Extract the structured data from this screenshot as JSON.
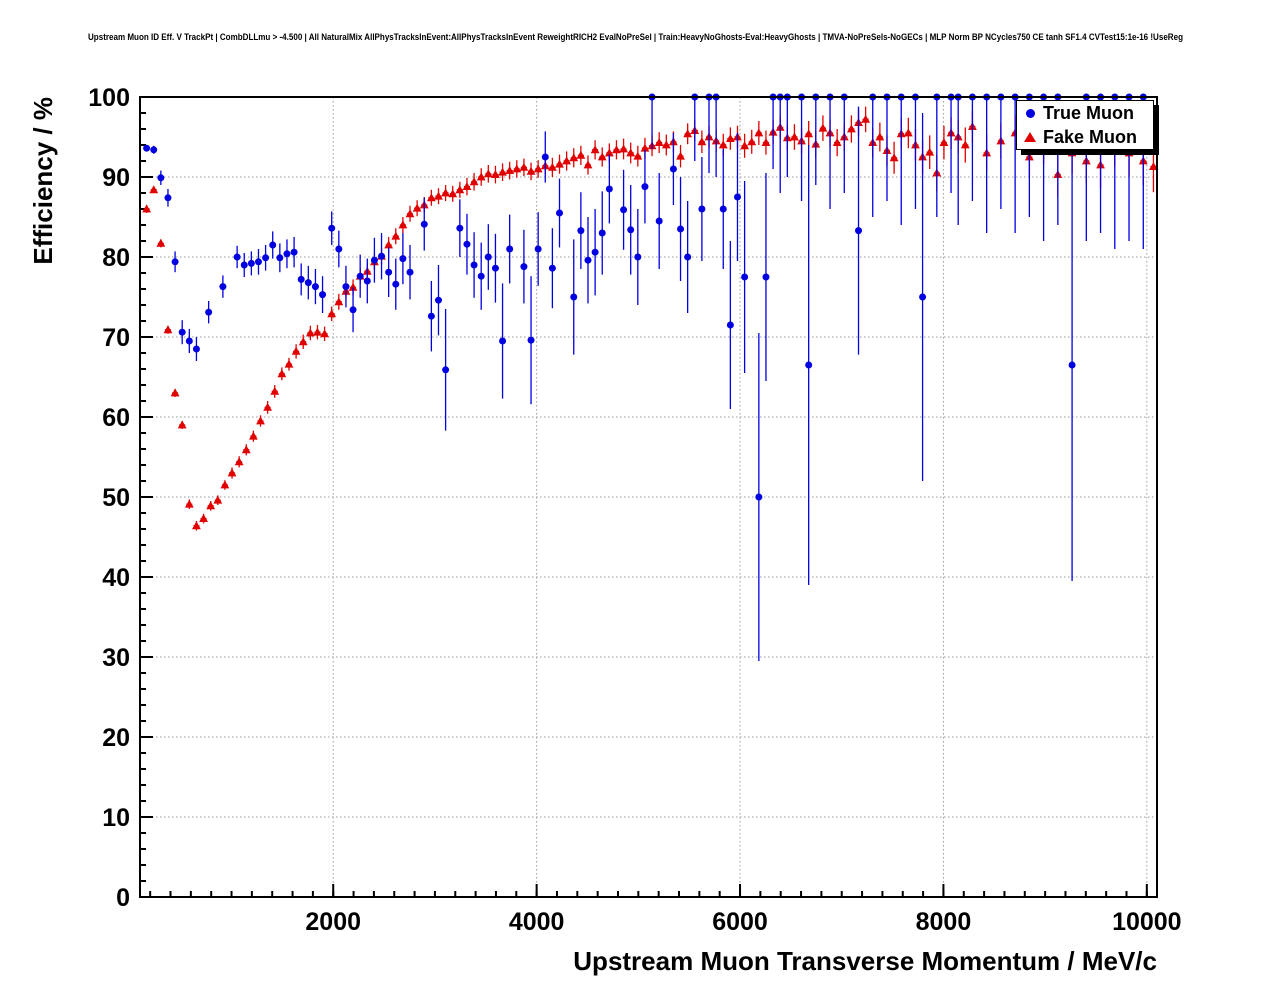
{
  "chart_data": {
    "type": "scatter",
    "title": "Upstream Muon ID Eff. V TrackPt | CombDLLmu > -4.500 | All NaturalMix AllPhysTracksInEvent:AllPhysTracksInEvent ReweightRICH2 EvalNoPreSel | Train:HeavyNoGhosts-Eval:HeavyGhosts | TMVA-NoPreSels-NoGECs | MLP Norm BP NCycles750 CE tanh SF1.4 CVTest15:1e-16 !UseReg",
    "xlabel": "Upstream Muon Transverse Momentum / MeV/c",
    "ylabel": "Efficiency / %",
    "xlim": [
      100,
      10100
    ],
    "ylim": [
      0,
      100
    ],
    "x_ticks": [
      2000,
      4000,
      6000,
      8000,
      10000
    ],
    "x_tick_labels": [
      "2000",
      "4000",
      "6000",
      "8000",
      "10000"
    ],
    "x_minor_step": 200,
    "y_ticks": [
      0,
      10,
      20,
      30,
      40,
      50,
      60,
      70,
      80,
      90,
      100
    ],
    "y_minor_step": 2,
    "grid": true,
    "grid_style": "dotted",
    "legend": {
      "position": "top-right",
      "items": [
        {
          "label": "True Muon",
          "marker": "circle"
        },
        {
          "label": "Fake Muon",
          "marker": "triangle"
        }
      ]
    },
    "series": [
      {
        "name": "True Muon",
        "marker": "circle",
        "color": "#0000e0",
        "x_halfwidth": 30,
        "points": [
          [
            165,
            93.6,
            0.4
          ],
          [
            235,
            93.4,
            0.5
          ],
          [
            305,
            89.9,
            0.9
          ],
          [
            375,
            87.4,
            1.1
          ],
          [
            445,
            79.4,
            1.3
          ],
          [
            515,
            70.6,
            1.5
          ],
          [
            585,
            69.5,
            1.5
          ],
          [
            655,
            68.5,
            1.5
          ],
          [
            775,
            73.1,
            1.4
          ],
          [
            915,
            76.3,
            1.4
          ],
          [
            1055,
            80.0,
            1.4
          ],
          [
            1125,
            79.0,
            1.5
          ],
          [
            1195,
            79.2,
            1.5
          ],
          [
            1265,
            79.4,
            1.6
          ],
          [
            1335,
            79.9,
            1.6
          ],
          [
            1405,
            81.5,
            1.7
          ],
          [
            1475,
            79.9,
            1.8
          ],
          [
            1545,
            80.4,
            1.8
          ],
          [
            1615,
            80.6,
            1.9
          ],
          [
            1685,
            77.2,
            2.0
          ],
          [
            1755,
            76.8,
            2.1
          ],
          [
            1825,
            76.3,
            2.2
          ],
          [
            1895,
            75.3,
            2.3
          ],
          [
            1985,
            83.6,
            2.1
          ],
          [
            2055,
            81.0,
            2.3
          ],
          [
            2125,
            76.3,
            2.6
          ],
          [
            2195,
            73.4,
            2.8
          ],
          [
            2265,
            77.6,
            2.7
          ],
          [
            2335,
            77.0,
            2.8
          ],
          [
            2405,
            79.6,
            2.8
          ],
          [
            2475,
            80.1,
            2.9
          ],
          [
            2545,
            78.1,
            3.1
          ],
          [
            2615,
            76.6,
            3.2
          ],
          [
            2685,
            79.8,
            3.2
          ],
          [
            2755,
            78.1,
            3.4
          ],
          [
            2895,
            84.1,
            3.3
          ],
          [
            2965,
            72.6,
            4.4
          ],
          [
            3035,
            74.6,
            4.4
          ],
          [
            3105,
            65.9,
            7.6
          ],
          [
            3245,
            83.6,
            3.6
          ],
          [
            3315,
            81.6,
            3.8
          ],
          [
            3385,
            79.0,
            4.1
          ],
          [
            3455,
            77.6,
            4.2
          ],
          [
            3525,
            80.0,
            4.1
          ],
          [
            3595,
            78.6,
            4.3
          ],
          [
            3665,
            69.5,
            7.2
          ],
          [
            3735,
            81.0,
            4.3
          ],
          [
            3875,
            78.8,
            4.6
          ],
          [
            3945,
            69.6,
            8.0
          ],
          [
            4015,
            81.0,
            4.6
          ],
          [
            4085,
            92.5,
            3.2
          ],
          [
            4155,
            78.6,
            5.0
          ],
          [
            4225,
            85.5,
            4.3
          ],
          [
            4365,
            75.0,
            7.2
          ],
          [
            4435,
            83.3,
            4.8
          ],
          [
            4505,
            79.6,
            5.4
          ],
          [
            4575,
            80.6,
            5.4
          ],
          [
            4645,
            83.0,
            5.2
          ],
          [
            4715,
            88.5,
            4.3
          ],
          [
            4855,
            85.9,
            5.0
          ],
          [
            4925,
            83.4,
            5.6
          ],
          [
            4995,
            80.0,
            6.0
          ],
          [
            5065,
            88.8,
            4.6
          ],
          [
            5135,
            100,
            6.5
          ],
          [
            5205,
            84.5,
            6.0
          ],
          [
            5345,
            91.0,
            4.5
          ],
          [
            5415,
            83.5,
            6.5
          ],
          [
            5485,
            80.0,
            7.0
          ],
          [
            5555,
            100,
            8.0
          ],
          [
            5625,
            86.0,
            6.5
          ],
          [
            5695,
            100,
            9.5
          ],
          [
            5765,
            100,
            10.0
          ],
          [
            5835,
            86.0,
            7.5
          ],
          [
            5905,
            71.5,
            10.5
          ],
          [
            5975,
            87.5,
            8.0
          ],
          [
            6045,
            77.5,
            12.0
          ],
          [
            6185,
            50.0,
            20.5
          ],
          [
            6255,
            77.5,
            13.0
          ],
          [
            6325,
            100,
            9.0
          ],
          [
            6395,
            100,
            12.0
          ],
          [
            6465,
            100,
            10.0
          ],
          [
            6605,
            100,
            13.0
          ],
          [
            6675,
            66.5,
            27.5
          ],
          [
            6745,
            100,
            11.0
          ],
          [
            6885,
            100,
            14.0
          ],
          [
            7025,
            100,
            12.0
          ],
          [
            7165,
            83.3,
            15.5
          ],
          [
            7305,
            100,
            15.0
          ],
          [
            7445,
            100,
            13.0
          ],
          [
            7585,
            100,
            16.0
          ],
          [
            7725,
            100,
            14.0
          ],
          [
            7795,
            75.0,
            23.0
          ],
          [
            7935,
            100,
            15.0
          ],
          [
            8075,
            100,
            12.0
          ],
          [
            8145,
            100,
            16.0
          ],
          [
            8285,
            100,
            13.0
          ],
          [
            8425,
            100,
            17.0
          ],
          [
            8565,
            100,
            14.0
          ],
          [
            8705,
            100,
            17.0
          ],
          [
            8845,
            100,
            15.0
          ],
          [
            8985,
            100,
            18.0
          ],
          [
            9125,
            100,
            16.0
          ],
          [
            9265,
            66.5,
            27.0
          ],
          [
            9405,
            100,
            18.0
          ],
          [
            9545,
            100,
            17.0
          ],
          [
            9685,
            100,
            19.0
          ],
          [
            9825,
            100,
            18.0
          ],
          [
            9965,
            100,
            19.0
          ]
        ]
      },
      {
        "name": "Fake Muon",
        "marker": "triangle",
        "color": "#e00000",
        "x_halfwidth": 30,
        "points": [
          [
            165,
            86.0,
            0.5
          ],
          [
            235,
            88.4,
            0.4
          ],
          [
            305,
            81.7,
            0.5
          ],
          [
            375,
            70.9,
            0.5
          ],
          [
            445,
            63.0,
            0.5
          ],
          [
            515,
            59.0,
            0.5
          ],
          [
            585,
            49.1,
            0.6
          ],
          [
            655,
            46.4,
            0.6
          ],
          [
            725,
            47.3,
            0.6
          ],
          [
            795,
            48.9,
            0.6
          ],
          [
            865,
            49.6,
            0.6
          ],
          [
            935,
            51.5,
            0.6
          ],
          [
            1005,
            53.0,
            0.7
          ],
          [
            1075,
            54.4,
            0.7
          ],
          [
            1145,
            55.9,
            0.7
          ],
          [
            1215,
            57.6,
            0.7
          ],
          [
            1285,
            59.5,
            0.7
          ],
          [
            1355,
            61.2,
            0.8
          ],
          [
            1425,
            63.2,
            0.8
          ],
          [
            1495,
            65.4,
            0.8
          ],
          [
            1565,
            66.6,
            0.8
          ],
          [
            1635,
            68.2,
            0.9
          ],
          [
            1705,
            69.4,
            0.9
          ],
          [
            1775,
            70.5,
            0.9
          ],
          [
            1845,
            70.6,
            0.9
          ],
          [
            1915,
            70.4,
            0.9
          ],
          [
            1985,
            72.9,
            0.9
          ],
          [
            2055,
            74.4,
            1.0
          ],
          [
            2125,
            75.7,
            1.0
          ],
          [
            2195,
            76.2,
            1.0
          ],
          [
            2265,
            77.6,
            1.0
          ],
          [
            2335,
            78.2,
            1.0
          ],
          [
            2405,
            79.4,
            1.0
          ],
          [
            2475,
            80.1,
            1.0
          ],
          [
            2545,
            81.5,
            1.0
          ],
          [
            2615,
            82.6,
            1.0
          ],
          [
            2685,
            84.0,
            1.0
          ],
          [
            2755,
            85.4,
            1.0
          ],
          [
            2825,
            86.1,
            1.0
          ],
          [
            2895,
            86.5,
            1.0
          ],
          [
            2965,
            87.4,
            1.0
          ],
          [
            3035,
            87.6,
            1.0
          ],
          [
            3105,
            88.0,
            1.0
          ],
          [
            3175,
            87.9,
            1.0
          ],
          [
            3245,
            88.4,
            1.0
          ],
          [
            3315,
            88.8,
            1.1
          ],
          [
            3385,
            89.4,
            1.1
          ],
          [
            3455,
            90.0,
            1.1
          ],
          [
            3525,
            90.4,
            1.1
          ],
          [
            3595,
            90.3,
            1.1
          ],
          [
            3665,
            90.6,
            1.1
          ],
          [
            3735,
            90.8,
            1.1
          ],
          [
            3805,
            91.0,
            1.1
          ],
          [
            3875,
            91.2,
            1.1
          ],
          [
            3945,
            90.7,
            1.1
          ],
          [
            4015,
            91.0,
            1.1
          ],
          [
            4085,
            91.4,
            1.1
          ],
          [
            4155,
            91.2,
            1.2
          ],
          [
            4225,
            91.6,
            1.2
          ],
          [
            4295,
            92.0,
            1.2
          ],
          [
            4365,
            92.4,
            1.2
          ],
          [
            4435,
            92.7,
            1.2
          ],
          [
            4505,
            91.5,
            1.2
          ],
          [
            4575,
            93.4,
            1.2
          ],
          [
            4645,
            92.5,
            1.2
          ],
          [
            4715,
            93.0,
            1.2
          ],
          [
            4785,
            93.4,
            1.2
          ],
          [
            4855,
            93.5,
            1.3
          ],
          [
            4925,
            93.0,
            1.3
          ],
          [
            4995,
            92.6,
            1.3
          ],
          [
            5065,
            93.6,
            1.3
          ],
          [
            5135,
            93.9,
            1.3
          ],
          [
            5205,
            94.3,
            1.3
          ],
          [
            5275,
            94.0,
            1.3
          ],
          [
            5345,
            94.4,
            1.3
          ],
          [
            5415,
            92.6,
            1.4
          ],
          [
            5485,
            95.4,
            1.3
          ],
          [
            5555,
            95.8,
            1.3
          ],
          [
            5625,
            94.4,
            1.4
          ],
          [
            5695,
            95.0,
            1.4
          ],
          [
            5765,
            94.5,
            1.4
          ],
          [
            5835,
            94.0,
            1.4
          ],
          [
            5905,
            94.8,
            1.4
          ],
          [
            5975,
            95.0,
            1.4
          ],
          [
            6045,
            93.9,
            1.5
          ],
          [
            6115,
            94.4,
            1.5
          ],
          [
            6185,
            95.5,
            1.5
          ],
          [
            6255,
            94.3,
            1.5
          ],
          [
            6325,
            95.6,
            1.5
          ],
          [
            6395,
            96.2,
            1.5
          ],
          [
            6465,
            94.9,
            1.6
          ],
          [
            6535,
            95.0,
            1.6
          ],
          [
            6605,
            94.5,
            1.6
          ],
          [
            6675,
            95.4,
            1.6
          ],
          [
            6745,
            94.1,
            1.7
          ],
          [
            6815,
            96.1,
            1.6
          ],
          [
            6885,
            95.5,
            1.7
          ],
          [
            6955,
            94.3,
            1.7
          ],
          [
            7025,
            95.0,
            1.7
          ],
          [
            7095,
            96.0,
            1.7
          ],
          [
            7165,
            96.8,
            1.6
          ],
          [
            7235,
            97.2,
            1.6
          ],
          [
            7305,
            94.3,
            1.8
          ],
          [
            7375,
            95.0,
            1.8
          ],
          [
            7445,
            93.3,
            1.9
          ],
          [
            7515,
            92.4,
            2.0
          ],
          [
            7585,
            95.4,
            1.9
          ],
          [
            7655,
            95.5,
            1.9
          ],
          [
            7725,
            94.0,
            2.0
          ],
          [
            7795,
            92.5,
            2.1
          ],
          [
            7865,
            93.1,
            2.1
          ],
          [
            7935,
            90.5,
            2.3
          ],
          [
            8005,
            94.3,
            2.1
          ],
          [
            8075,
            95.5,
            2.0
          ],
          [
            8145,
            95.0,
            2.1
          ],
          [
            8215,
            94.0,
            2.2
          ],
          [
            8285,
            96.3,
            2.0
          ],
          [
            8425,
            93.0,
            2.3
          ],
          [
            8565,
            94.5,
            2.2
          ],
          [
            8705,
            95.5,
            2.2
          ],
          [
            8845,
            92.5,
            2.5
          ],
          [
            8985,
            94.0,
            2.4
          ],
          [
            9125,
            90.3,
            2.8
          ],
          [
            9265,
            93.0,
            2.6
          ],
          [
            9405,
            92.0,
            2.8
          ],
          [
            9545,
            91.5,
            2.9
          ],
          [
            9685,
            94.0,
            2.7
          ],
          [
            9825,
            93.0,
            2.9
          ],
          [
            9965,
            92.0,
            3.0
          ],
          [
            10065,
            91.3,
            3.2
          ]
        ]
      }
    ]
  }
}
